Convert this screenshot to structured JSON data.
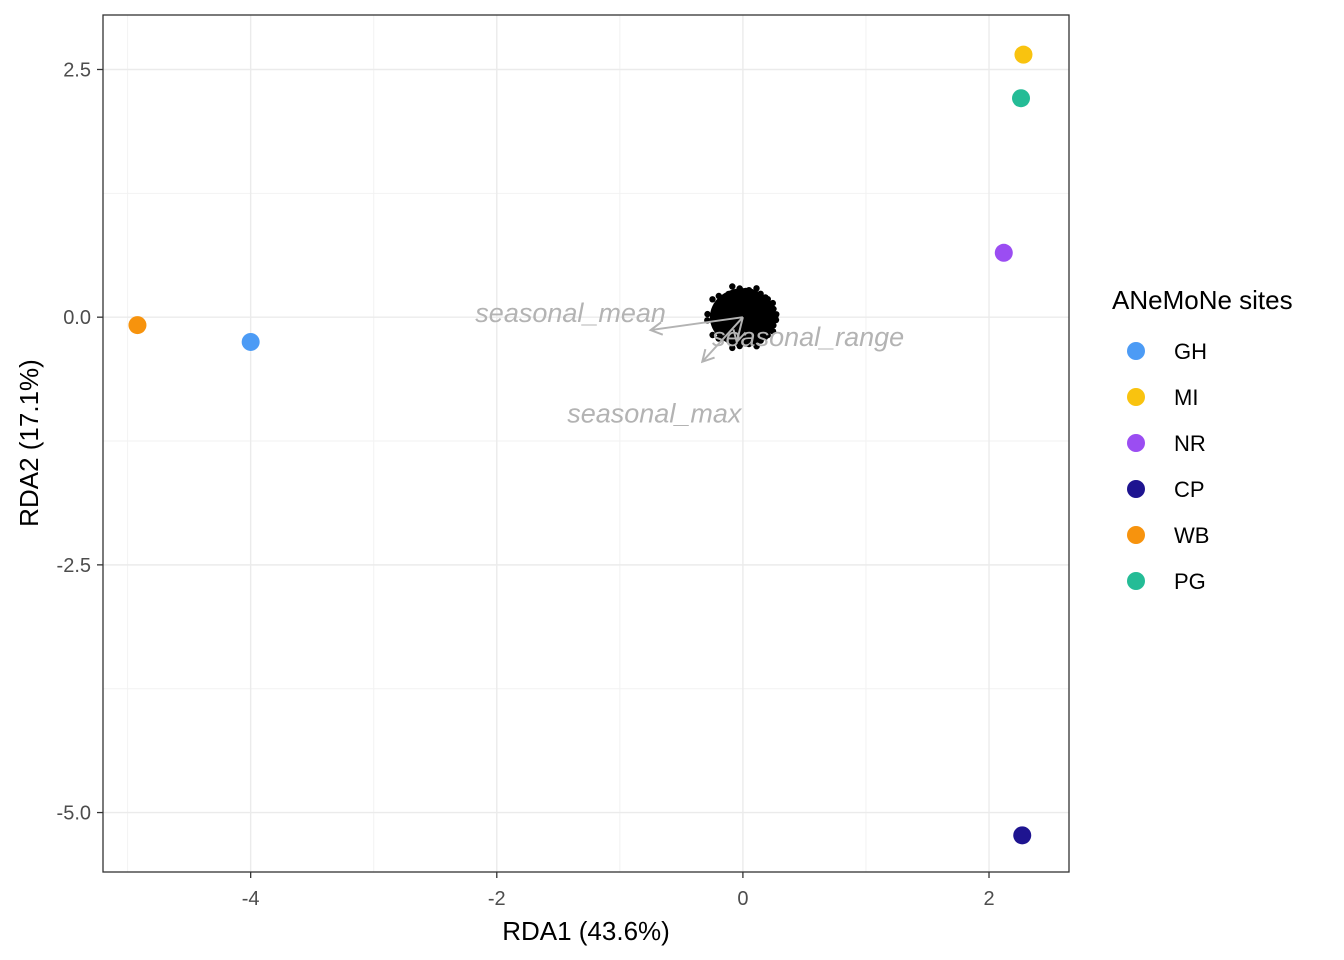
{
  "chart_data": {
    "type": "scatter",
    "xlabel": "RDA1 (43.6%)",
    "ylabel": "RDA2 (17.1%)",
    "xlim": [
      -5.2,
      2.65
    ],
    "ylim": [
      -5.6,
      3.05
    ],
    "x_ticks": [
      -4,
      -2,
      0,
      2
    ],
    "x_tick_labels": [
      "-4",
      "-2",
      "0",
      "2"
    ],
    "y_ticks": [
      2.5,
      0,
      -2.5,
      -5
    ],
    "y_tick_labels": [
      "2.5",
      "0.0",
      "-2.5",
      "-5.0"
    ],
    "grid": true,
    "legend": {
      "title": "ANeMoNe sites",
      "placement": "right",
      "entries": [
        {
          "label": "GH",
          "color": "#4C9BF5"
        },
        {
          "label": "MI",
          "color": "#F9C30F"
        },
        {
          "label": "NR",
          "color": "#9B4DF2"
        },
        {
          "label": "CP",
          "color": "#1E1490"
        },
        {
          "label": "WB",
          "color": "#F7930D"
        },
        {
          "label": "PG",
          "color": "#24BC96"
        }
      ]
    },
    "points": [
      {
        "site": "GH",
        "x": -4.0,
        "y": -0.25
      },
      {
        "site": "MI",
        "x": 2.28,
        "y": 2.65
      },
      {
        "site": "NR",
        "x": 2.12,
        "y": 0.65
      },
      {
        "site": "CP",
        "x": 2.27,
        "y": -5.23
      },
      {
        "site": "WB",
        "x": -4.92,
        "y": -0.08
      },
      {
        "site": "PG",
        "x": 2.26,
        "y": 2.21
      }
    ],
    "species_cloud": {
      "x": 0.0,
      "y": 0.0,
      "color": "#000000"
    },
    "arrows": [
      {
        "label": "seasonal_mean",
        "x": -0.75,
        "y": -0.13,
        "label_x": -1.4,
        "label_y": 0.04
      },
      {
        "label": "seasonal_range",
        "x": -0.05,
        "y": -0.25,
        "label_x": 0.53,
        "label_y": -0.2
      },
      {
        "label": "seasonal_max",
        "x": -0.33,
        "y": -0.45,
        "label_x": -0.72,
        "label_y": -0.97
      }
    ]
  }
}
